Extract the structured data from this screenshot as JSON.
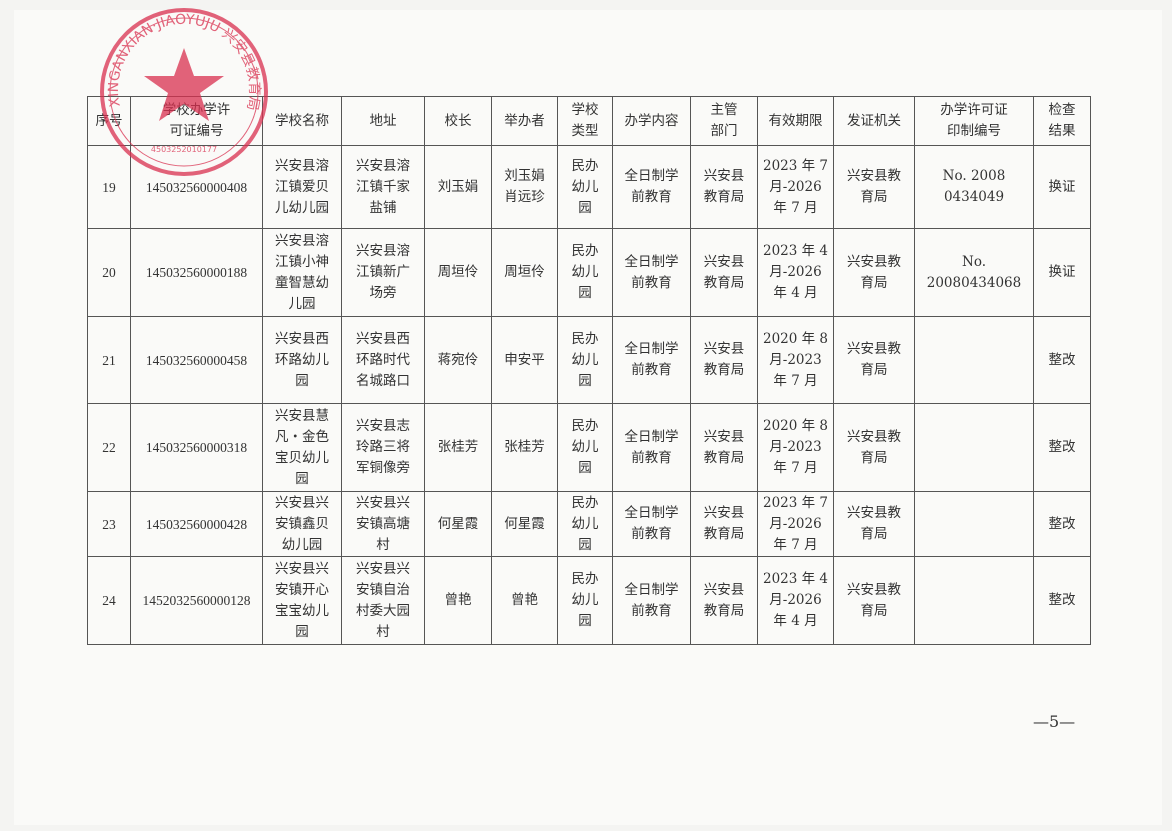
{
  "stamp": {
    "text": "XINGANXIAN JIAOYUJU 兴安县教育局",
    "code": "4503252010177",
    "color": "#d9304f"
  },
  "table": {
    "headers": [
      "序号",
      "学校办学许\n可证编号",
      "学校名称",
      "地址",
      "校长",
      "举办者",
      "学校\n类型",
      "办学内容",
      "主管\n部门",
      "有效期限",
      "发证机关",
      "办学许可证\n印制编号",
      "检查\n结果"
    ],
    "rows": [
      [
        "19",
        "145032560000408",
        "兴安县溶\n江镇爱贝\n儿幼儿园",
        "兴安县溶\n江镇千家\n盐铺",
        "刘玉娟",
        "刘玉娟\n肖远珍",
        "民办\n幼儿\n园",
        "全日制学\n前教育",
        "兴安县\n教育局",
        "2023 年 7\n月-2026\n年 7 月",
        "兴安县教\n育局",
        "No. 2008\n0434049",
        "换证"
      ],
      [
        "20",
        "145032560000188",
        "兴安县溶\n江镇小神\n童智慧幼\n儿园",
        "兴安县溶\n江镇新广\n场旁",
        "周垣伶",
        "周垣伶",
        "民办\n幼儿\n园",
        "全日制学\n前教育",
        "兴安县\n教育局",
        "2023 年 4\n月-2026\n年 4 月",
        "兴安县教\n育局",
        "No. 20080434068",
        "换证"
      ],
      [
        "21",
        "145032560000458",
        "兴安县西\n环路幼儿\n园",
        "兴安县西\n环路时代\n名城路口",
        "蒋宛伶",
        "申安平",
        "民办\n幼儿\n园",
        "全日制学\n前教育",
        "兴安县\n教育局",
        "2020 年 8\n月-2023\n年 7 月",
        "兴安县教\n育局",
        "",
        "整改"
      ],
      [
        "22",
        "145032560000318",
        "兴安县慧\n凡・金色\n宝贝幼儿\n园",
        "兴安县志\n玲路三将\n军铜像旁",
        "张桂芳",
        "张桂芳",
        "民办\n幼儿\n园",
        "全日制学\n前教育",
        "兴安县\n教育局",
        "2020 年 8\n月-2023\n年 7 月",
        "兴安县教\n育局",
        "",
        "整改"
      ],
      [
        "23",
        "145032560000428",
        "兴安县兴\n安镇鑫贝\n幼儿园",
        "兴安县兴\n安镇高塘\n村",
        "何星霞",
        "何星霞",
        "民办\n幼儿\n园",
        "全日制学\n前教育",
        "兴安县\n教育局",
        "2023 年 7\n月-2026\n年 7 月",
        "兴安县教\n育局",
        "",
        "整改"
      ],
      [
        "24",
        "1452032560000128",
        "兴安县兴\n安镇开心\n宝宝幼儿\n园",
        "兴安县兴\n安镇自治\n村委大园\n村",
        "曾艳",
        "曾艳",
        "民办\n幼儿\n园",
        "全日制学\n前教育",
        "兴安县\n教育局",
        "2023 年 4\n月-2026\n年 4 月",
        "兴安县教\n育局",
        "",
        "整改"
      ]
    ]
  },
  "footer": {
    "page_number": "—5—"
  }
}
